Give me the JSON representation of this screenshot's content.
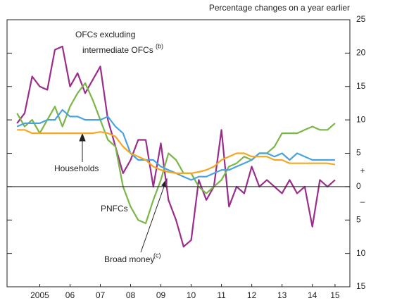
{
  "chart_data": {
    "type": "line",
    "units_label": "Percentage changes on a year earlier",
    "x": [
      2004.75,
      2005,
      2005.25,
      2005.5,
      2005.75,
      2006,
      2006.25,
      2006.5,
      2006.75,
      2007,
      2007.25,
      2007.5,
      2007.75,
      2008,
      2008.25,
      2008.5,
      2008.75,
      2009,
      2009.25,
      2009.5,
      2009.75,
      2010,
      2010.25,
      2010.5,
      2010.75,
      2011,
      2011.25,
      2011.5,
      2011.75,
      2012,
      2012.25,
      2012.5,
      2012.75,
      2013,
      2013.25,
      2013.5,
      2013.75,
      2014,
      2014.25,
      2014.5,
      2014.75,
      2015,
      2015.25
    ],
    "series": [
      {
        "name": "OFCs excluding intermediate OFCs",
        "color": "#9b2d8c",
        "values": [
          9.5,
          11,
          16.5,
          15,
          14.5,
          20.5,
          21,
          15,
          17,
          14,
          16,
          18,
          10,
          6,
          2,
          4,
          7,
          7,
          0,
          6.5,
          -2,
          -5,
          -9,
          -8,
          1,
          -2,
          0,
          8.5,
          -3,
          0,
          -1,
          3,
          0,
          1,
          0,
          -1,
          1,
          -1,
          0,
          -6,
          1,
          0,
          1
        ]
      },
      {
        "name": "PNFCs",
        "color": "#7ab648",
        "values": [
          11,
          9,
          10,
          8,
          10,
          12,
          9,
          12,
          14,
          15.5,
          13,
          10,
          7,
          6,
          0,
          -3,
          -5,
          -5.5,
          -2,
          1,
          5,
          4,
          2,
          2,
          0,
          -1,
          0,
          1,
          3,
          3.5,
          4.5,
          4,
          5,
          5,
          6,
          8,
          8,
          8,
          8.5,
          9,
          8.5,
          8.5,
          9.5
        ]
      },
      {
        "name": "Broad money",
        "color": "#4aa3df",
        "values": [
          9,
          9.5,
          9.5,
          9.5,
          10,
          10,
          11.5,
          10.5,
          10.5,
          10,
          10,
          10,
          10.5,
          9,
          8,
          5,
          4,
          4,
          4,
          3,
          2.5,
          2,
          1.5,
          1,
          1.5,
          1.5,
          2,
          2.5,
          2.5,
          3,
          3.5,
          4,
          5,
          5,
          4.5,
          5,
          4,
          5,
          4.5,
          4,
          4,
          4,
          4
        ]
      },
      {
        "name": "Households",
        "color": "#f5a623",
        "values": [
          8.5,
          8.5,
          8,
          8,
          8,
          8,
          8,
          8,
          8,
          8,
          8,
          8.2,
          8,
          7.5,
          6,
          5,
          4.5,
          4,
          3,
          2.5,
          2.2,
          2,
          2,
          2,
          2.2,
          2.5,
          3,
          4,
          4.5,
          5,
          5,
          4.5,
          4.5,
          4.5,
          4,
          4,
          3.5,
          3.5,
          3.5,
          3.5,
          3.5,
          3.5,
          3.3
        ]
      }
    ],
    "annotations": {
      "ofcs_line1": "OFCs excluding",
      "ofcs_line2": "intermediate OFCs",
      "ofcs_note": "(b)",
      "households": "Households",
      "pnfcs": "PNFCs",
      "broad_money": "Broad money",
      "broad_money_note": "(c)",
      "plus": "+",
      "minus": "–"
    },
    "xlim": [
      2004.42,
      2015.74
    ],
    "xticks": [
      {
        "value": 2005.5,
        "label": "2005"
      },
      {
        "value": 2006.5,
        "label": "06"
      },
      {
        "value": 2007.5,
        "label": "07"
      },
      {
        "value": 2008.5,
        "label": "08"
      },
      {
        "value": 2009.5,
        "label": "09"
      },
      {
        "value": 2010.5,
        "label": "10"
      },
      {
        "value": 2011.5,
        "label": "11"
      },
      {
        "value": 2012.5,
        "label": "12"
      },
      {
        "value": 2013.5,
        "label": "13"
      },
      {
        "value": 2014.5,
        "label": "14"
      },
      {
        "value": 2015.25,
        "label": "15"
      }
    ],
    "ylim": [
      -15,
      25
    ],
    "yticks": [
      {
        "value": -15,
        "label": "15"
      },
      {
        "value": -10,
        "label": "10"
      },
      {
        "value": -5,
        "label": "5"
      },
      0,
      5,
      10,
      15,
      20,
      25
    ],
    "zero_line": true
  }
}
